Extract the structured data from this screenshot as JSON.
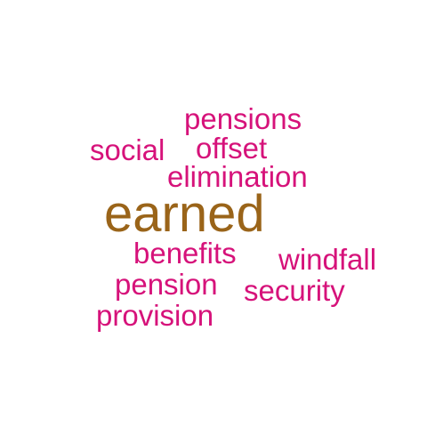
{
  "colors": {
    "primary": "#9a6419",
    "secondary": "#d6127a"
  },
  "words": {
    "earned": "earned",
    "pensions": "pensions",
    "social": "social",
    "offset": "offset",
    "elimination": "elimination",
    "benefits": "benefits",
    "windfall": "windfall",
    "pension": "pension",
    "security": "security",
    "provision": "provision"
  }
}
